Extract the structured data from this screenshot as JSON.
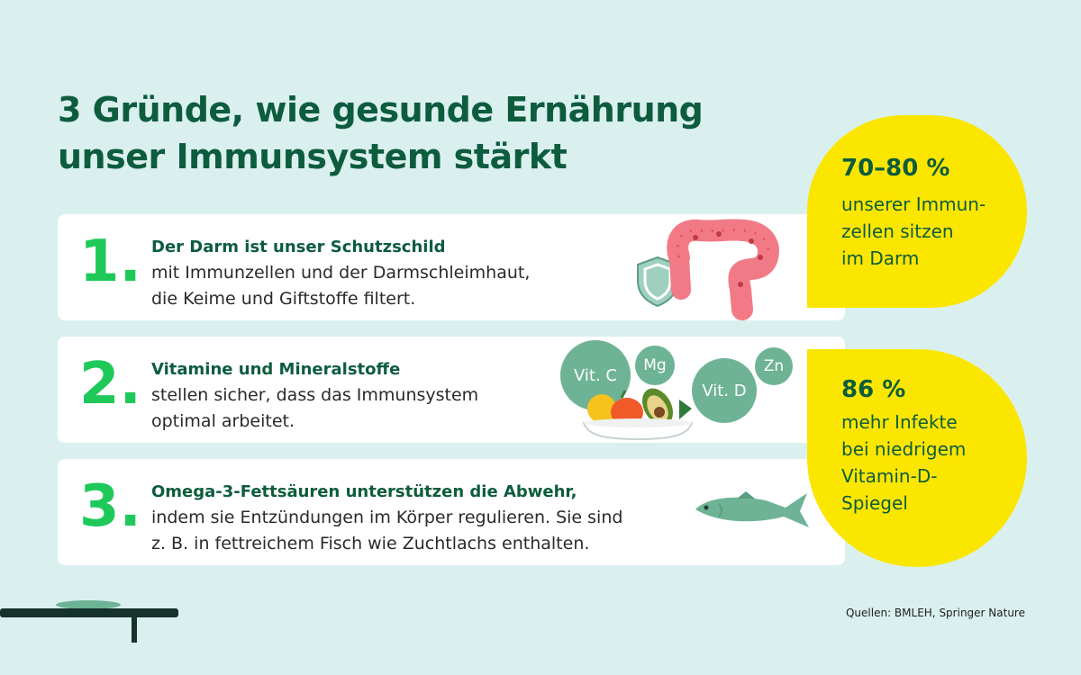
{
  "title": {
    "line1": "3 Gründe, wie gesunde Ernährung",
    "line2": "unser Immunsystem stärkt"
  },
  "cards": [
    {
      "number": "1.",
      "heading": "Der Darm ist unser Schutzschild",
      "line1": "mit Immunzellen und der Darmschleimhaut,",
      "line2": "die Keime und Giftstoffe filtert."
    },
    {
      "number": "2.",
      "heading": "Vitamine und Mineralstoffe",
      "line1": "stellen sicher, dass das Immunsystem",
      "line2": "optimal arbeitet."
    },
    {
      "number": "3.",
      "heading": "Omega-3-Fettsäuren unterstützen die Abwehr,",
      "line1": "indem sie Entzündungen im Körper regulieren. Sie sind",
      "line2": "z. B. in fettreichem Fisch wie Zuchtlachs enthalten."
    }
  ],
  "stats": [
    {
      "value": "70–80 %",
      "lines": [
        "unserer Immun-",
        "zellen sitzen",
        "im Darm"
      ]
    },
    {
      "value": "86 %",
      "lines": [
        "mehr Infekte",
        "bei niedrigem",
        "Vitamin-D-",
        "Spiegel"
      ]
    }
  ],
  "nutrients": {
    "vitc": "Vit. C",
    "mg": "Mg",
    "vitd": "Vit. D",
    "zn": "Zn"
  },
  "sources": "Quellen: BMLEH, Springer Nature",
  "icons": [
    "shield-icon",
    "intestine-icon",
    "food-bowl-icon",
    "fish-icon",
    "table-icon"
  ],
  "colors": {
    "background": "#daf0ef",
    "accent_green": "#1ec95a",
    "dark_green": "#0d5c3e",
    "yellow": "#fbe600",
    "sage": "#6eb395"
  }
}
